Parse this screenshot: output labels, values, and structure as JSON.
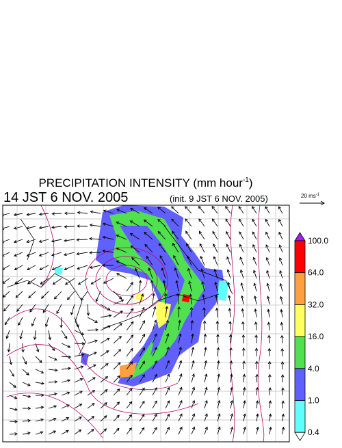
{
  "header": {
    "title": "PRECIPITATION INTENSITY (mm hour",
    "title_exponent": "-1",
    "title_close": ")",
    "valid_time": "14 JST 6 NOV. 2005",
    "init_time": "(init. 9 JST 6 NOV. 2005)"
  },
  "wind_scale": {
    "label": "20 ms",
    "exponent": "-1"
  },
  "colorbar": {
    "over_color": "#a020f0",
    "under_color": "#ffffff",
    "levels": [
      {
        "label": "100.0",
        "color": "#ff0000"
      },
      {
        "label": "64.0",
        "color": "#ffa040"
      },
      {
        "label": "32.0",
        "color": "#ffff60"
      },
      {
        "label": "16.0",
        "color": "#50e050"
      },
      {
        "label": "4.0",
        "color": "#6060ff"
      },
      {
        "label": "1.0",
        "color": "#60ffff"
      },
      {
        "label": "0.4",
        "color": null
      }
    ]
  }
}
